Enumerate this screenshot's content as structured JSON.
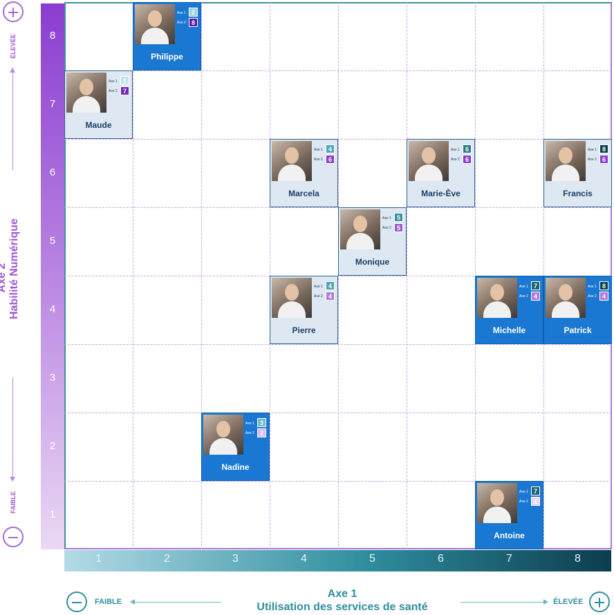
{
  "y_axis": {
    "title_line1": "Axe 2",
    "title_line2": "Habilité Numérique",
    "high_label": "ÉLEVÉE",
    "low_label": "FAIBLE",
    "ticks": [
      "8",
      "7",
      "6",
      "5",
      "4",
      "3",
      "2",
      "1"
    ]
  },
  "x_axis": {
    "title_line1": "Axe 1",
    "title_line2": "Utilisation des services de santé",
    "high_label": "ÉLEVÉE",
    "low_label": "FAIBLE",
    "ticks": [
      "1",
      "2",
      "3",
      "4",
      "5",
      "6",
      "7",
      "8"
    ]
  },
  "axis_small": {
    "axe1": "Axe 1",
    "axe2": "Axe 2"
  },
  "persons": [
    {
      "name": "Philippe",
      "axe1": 2,
      "axe2": 8
    },
    {
      "name": "Maude",
      "axe1": 1,
      "axe2": 7
    },
    {
      "name": "Marcela",
      "axe1": 4,
      "axe2": 6
    },
    {
      "name": "Marie-Ève",
      "axe1": 6,
      "axe2": 6
    },
    {
      "name": "Francis",
      "axe1": 8,
      "axe2": 6
    },
    {
      "name": "Monique",
      "axe1": 5,
      "axe2": 5
    },
    {
      "name": "Pierre",
      "axe1": 4,
      "axe2": 4
    },
    {
      "name": "Michelle",
      "axe1": 7,
      "axe2": 4
    },
    {
      "name": "Patrick",
      "axe1": 8,
      "axe2": 4
    },
    {
      "name": "Nadine",
      "axe1": 3,
      "axe2": 2
    },
    {
      "name": "Antoine",
      "axe1": 7,
      "axe2": 1
    }
  ],
  "colors": {
    "purple": "#8a3ed0",
    "teal": "#2f8e9e",
    "card_blue": "#1a78d2",
    "card_light": "#dde8f2"
  }
}
